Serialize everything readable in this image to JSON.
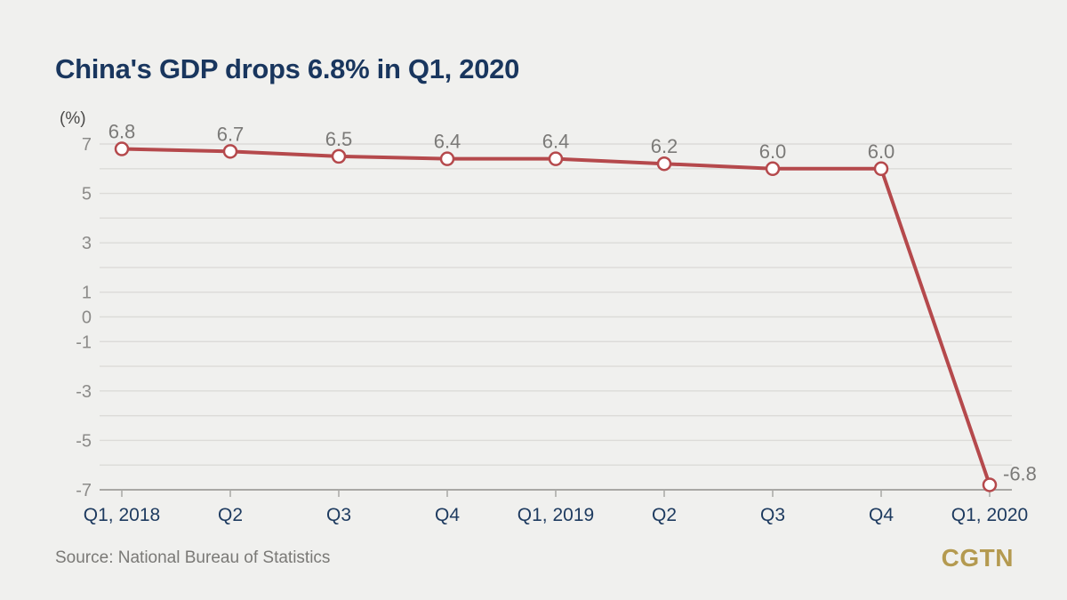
{
  "page": {
    "title": "China's GDP drops 6.8% in Q1, 2020",
    "source": "Source: National Bureau of Statistics",
    "logo": "CGTN"
  },
  "colors": {
    "background": "#f0f0ee",
    "title_navy": "#19365e",
    "line_red": "#b5494c",
    "marker_fill": "#ffffff",
    "grid": "#dcdbd8",
    "axis": "#a9a8a5",
    "y_tick_gray": "#8c8b89",
    "data_label_gray": "#7b7a78",
    "x_label_navy": "#1d3a5f",
    "logo_gold": "#b49a50"
  },
  "chart_data": {
    "type": "line",
    "title": "China's GDP drops 6.8% in Q1, 2020",
    "xlabel": "",
    "ylabel": "(%)",
    "categories": [
      "Q1, 2018",
      "Q2",
      "Q3",
      "Q4",
      "Q1, 2019",
      "Q2",
      "Q3",
      "Q4",
      "Q1, 2020"
    ],
    "values": [
      6.8,
      6.7,
      6.5,
      6.4,
      6.4,
      6.2,
      6.0,
      6.0,
      -6.8
    ],
    "point_labels": [
      "6.8",
      "6.7",
      "6.5",
      "6.4",
      "6.4",
      "6.2",
      "6.0",
      "6.0",
      "-6.8"
    ],
    "ylim": [
      -7,
      7
    ],
    "y_tick_labels": [
      7,
      5,
      3,
      1,
      0,
      -1,
      -3,
      -5,
      -7
    ],
    "grid_step": 1,
    "grid": true,
    "legend": false
  }
}
